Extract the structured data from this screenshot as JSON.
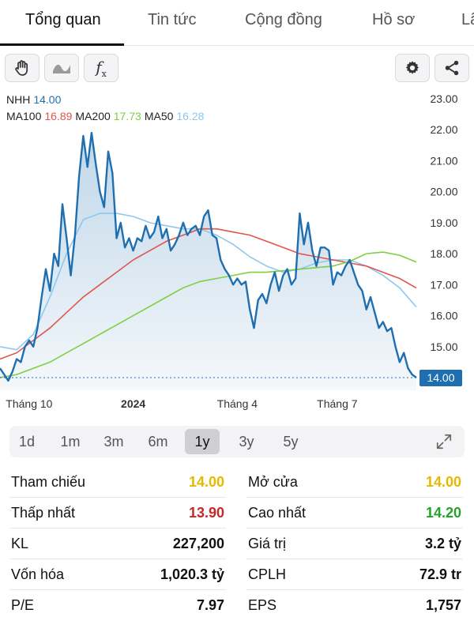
{
  "tabs": [
    {
      "label": "Tổng quan",
      "active": true
    },
    {
      "label": "Tin tức",
      "active": false
    },
    {
      "label": "Cộng đồng",
      "active": false
    },
    {
      "label": "Hồ sơ",
      "active": false
    },
    {
      "label": "Lã",
      "active": false
    }
  ],
  "toolbar": {
    "left_icons": [
      "hand-icon",
      "wave-icon",
      "fx-icon"
    ],
    "fx_label": "f",
    "fx_sub": "x",
    "right_icons": [
      "gear-icon",
      "share-icon"
    ]
  },
  "legend": {
    "symbol": "NHH",
    "price": "14.00",
    "ma100_label": "MA100",
    "ma100_value": "16.89",
    "ma200_label": "MA200",
    "ma200_value": "17.73",
    "ma50_label": "MA50",
    "ma50_value": "16.28"
  },
  "colors": {
    "price_line": "#1f6fb0",
    "ma100": "#e0564b",
    "ma200": "#7fcf3f",
    "ma50": "#8ec8ee",
    "price_tag_bg": "#1f6fb0",
    "yellow": "#e6b800",
    "red": "#c62828",
    "green": "#22a32a"
  },
  "chart_data": {
    "type": "line",
    "y_ticks": [
      "23.00",
      "22.00",
      "21.00",
      "20.00",
      "19.00",
      "18.00",
      "17.00",
      "16.00",
      "15.00",
      "14.00"
    ],
    "ylim": [
      13.6,
      23.2
    ],
    "xlim": [
      0,
      100
    ],
    "x_ticks": [
      {
        "label": "Tháng 10",
        "x": 7,
        "bold": false
      },
      {
        "label": "2024",
        "x": 32,
        "bold": true
      },
      {
        "label": "Tháng 4",
        "x": 57,
        "bold": false
      },
      {
        "label": "Tháng 7",
        "x": 81,
        "bold": false
      }
    ],
    "current_price_label": "14.00",
    "current_price": 14.0,
    "series": [
      {
        "name": "NHH",
        "role": "price",
        "x": [
          0,
          1,
          2,
          3,
          4,
          5,
          6,
          7,
          8,
          9,
          10,
          11,
          12,
          13,
          14,
          15,
          16,
          17,
          18,
          19,
          20,
          21,
          22,
          23,
          24,
          25,
          26,
          27,
          28,
          29,
          30,
          31,
          32,
          33,
          34,
          35,
          36,
          37,
          38,
          39,
          40,
          41,
          42,
          43,
          44,
          45,
          46,
          47,
          48,
          49,
          50,
          51,
          52,
          53,
          54,
          55,
          56,
          57,
          58,
          59,
          60,
          61,
          62,
          63,
          64,
          65,
          66,
          67,
          68,
          69,
          70,
          71,
          72,
          73,
          74,
          75,
          76,
          77,
          78,
          79,
          80,
          81,
          82,
          83,
          84,
          85,
          86,
          87,
          88,
          89,
          90,
          91,
          92,
          93,
          94,
          95,
          96,
          97,
          98,
          99,
          100
        ],
        "values": [
          14.3,
          14.1,
          13.9,
          14.2,
          14.6,
          14.5,
          15.0,
          15.2,
          15.0,
          15.6,
          16.6,
          17.5,
          16.8,
          18.0,
          17.6,
          19.6,
          18.5,
          17.3,
          18.6,
          20.5,
          21.8,
          20.8,
          21.9,
          20.9,
          20.0,
          19.5,
          21.3,
          20.6,
          18.5,
          19.0,
          18.2,
          18.5,
          18.1,
          18.5,
          18.4,
          18.9,
          18.5,
          18.7,
          19.2,
          18.5,
          18.8,
          18.1,
          18.3,
          18.6,
          19.0,
          18.6,
          18.8,
          18.9,
          18.6,
          19.2,
          19.4,
          18.6,
          18.5,
          17.8,
          17.5,
          17.3,
          17.0,
          17.2,
          17.0,
          17.1,
          16.2,
          15.6,
          16.5,
          16.7,
          16.4,
          17.0,
          17.4,
          16.8,
          17.3,
          17.5,
          17.0,
          17.2,
          19.3,
          18.3,
          19.0,
          18.1,
          17.6,
          18.2,
          18.2,
          18.1,
          17.0,
          17.4,
          17.3,
          17.6,
          17.8,
          17.4,
          17.0,
          16.8,
          16.2,
          16.6,
          16.1,
          15.6,
          15.8,
          15.5,
          15.6,
          15.0,
          14.5,
          14.8,
          14.3,
          14.1,
          14.0
        ]
      },
      {
        "name": "MA50",
        "role": "ma",
        "x": [
          0,
          4,
          8,
          12,
          16,
          20,
          24,
          28,
          32,
          36,
          40,
          44,
          48,
          52,
          56,
          60,
          64,
          68,
          72,
          76,
          80,
          84,
          88,
          92,
          96,
          100
        ],
        "values": [
          15.0,
          14.9,
          15.4,
          16.6,
          18.0,
          19.1,
          19.3,
          19.3,
          19.2,
          19.0,
          18.9,
          18.8,
          18.8,
          18.6,
          18.3,
          17.9,
          17.6,
          17.4,
          17.5,
          17.7,
          17.8,
          17.8,
          17.6,
          17.3,
          16.9,
          16.28
        ]
      },
      {
        "name": "MA100",
        "role": "ma",
        "x": [
          0,
          4,
          8,
          12,
          16,
          20,
          24,
          28,
          32,
          36,
          40,
          44,
          48,
          52,
          56,
          60,
          64,
          68,
          72,
          76,
          80,
          84,
          88,
          92,
          96,
          100
        ],
        "values": [
          14.6,
          14.8,
          15.2,
          15.6,
          16.1,
          16.6,
          17.0,
          17.4,
          17.8,
          18.1,
          18.4,
          18.6,
          18.8,
          18.8,
          18.7,
          18.6,
          18.4,
          18.2,
          18.0,
          17.9,
          17.8,
          17.7,
          17.6,
          17.4,
          17.2,
          16.89
        ]
      },
      {
        "name": "MA200",
        "role": "ma",
        "x": [
          0,
          4,
          8,
          12,
          16,
          20,
          24,
          28,
          32,
          36,
          40,
          44,
          48,
          52,
          56,
          60,
          64,
          68,
          72,
          76,
          80,
          84,
          88,
          92,
          96,
          100
        ],
        "values": [
          14.0,
          14.1,
          14.3,
          14.5,
          14.8,
          15.1,
          15.4,
          15.7,
          16.0,
          16.3,
          16.6,
          16.9,
          17.1,
          17.2,
          17.3,
          17.4,
          17.4,
          17.45,
          17.5,
          17.55,
          17.6,
          17.75,
          18.0,
          18.05,
          17.95,
          17.73
        ]
      }
    ]
  },
  "periods": [
    {
      "label": "1d",
      "active": false
    },
    {
      "label": "1m",
      "active": false
    },
    {
      "label": "3m",
      "active": false
    },
    {
      "label": "6m",
      "active": false
    },
    {
      "label": "1y",
      "active": true
    },
    {
      "label": "3y",
      "active": false
    },
    {
      "label": "5y",
      "active": false
    }
  ],
  "stats": {
    "left": [
      {
        "label": "Tham chiếu",
        "value": "14.00",
        "color": "yellow"
      },
      {
        "label": "Thấp nhất",
        "value": "13.90",
        "color": "red"
      },
      {
        "label": "KL",
        "value": "227,200",
        "color": "default"
      },
      {
        "label": "Vốn hóa",
        "value": "1,020.3 tỷ",
        "color": "default"
      },
      {
        "label": "P/E",
        "value": "7.97",
        "color": "default"
      }
    ],
    "right": [
      {
        "label": "Mở cửa",
        "value": "14.00",
        "color": "yellow"
      },
      {
        "label": "Cao nhất",
        "value": "14.20",
        "color": "green"
      },
      {
        "label": "Giá trị",
        "value": "3.2 tỷ",
        "color": "default"
      },
      {
        "label": "CPLH",
        "value": "72.9 tr",
        "color": "default"
      },
      {
        "label": "EPS",
        "value": "1,757",
        "color": "default"
      }
    ]
  }
}
